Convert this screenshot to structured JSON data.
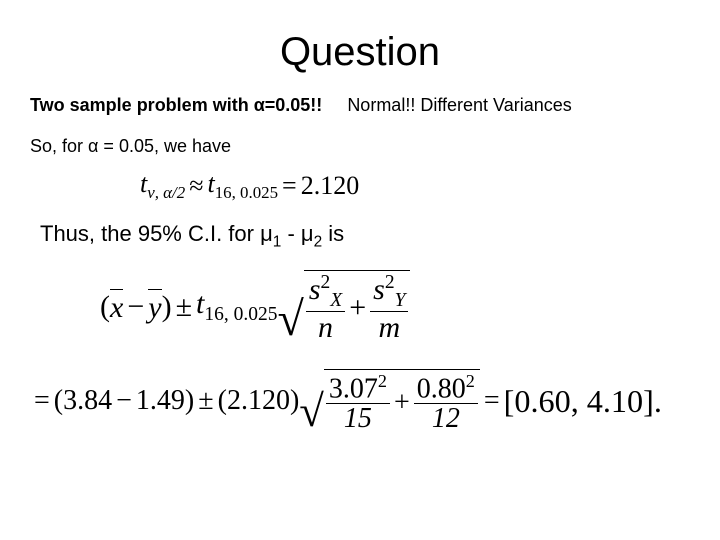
{
  "title": "Question",
  "line1a": "Two sample problem with α=0.05!!",
  "line1b": "Normal!! Different Variances",
  "line2": "So, for α = 0.05, we have",
  "line3_pre": "Thus, the 95% C.I. for μ",
  "line3_sub1": "1",
  "line3_mid": " - μ",
  "line3_sub2": "2",
  "line3_post": " is",
  "eq1": {
    "t": "t",
    "sub_left": "ν, α/2",
    "approx": "≈",
    "sub_right": "16, 0.025",
    "eq": "=",
    "val": "2.120"
  },
  "eq2": {
    "lpar": "(",
    "xbar": "x",
    "minus": "−",
    "ybar": "y",
    "rpar": ")",
    "pm": "±",
    "t": "t",
    "tsub": "16, 0.025",
    "sX2_top": "s",
    "sX2_sub": "X",
    "sX2_sup": "2",
    "n": "n",
    "plus": "+",
    "sY2_top": "s",
    "sY2_sub": "Y",
    "sY2_sup": "2",
    "m": "m"
  },
  "eq3": {
    "eq": "=",
    "open": "(",
    "a": "3.84",
    "minus": "−",
    "b": "1.49",
    "close": ")",
    "pm": "±",
    "open2": "(",
    "tval": "2.120",
    "close2": ")",
    "f1n": "3.07",
    "f1sup": "2",
    "f1d": "15",
    "plus": "+",
    "f2n": "0.80",
    "f2sup": "2",
    "f2d": "12",
    "eq2": "=",
    "result": "[0.60, 4.10]."
  }
}
